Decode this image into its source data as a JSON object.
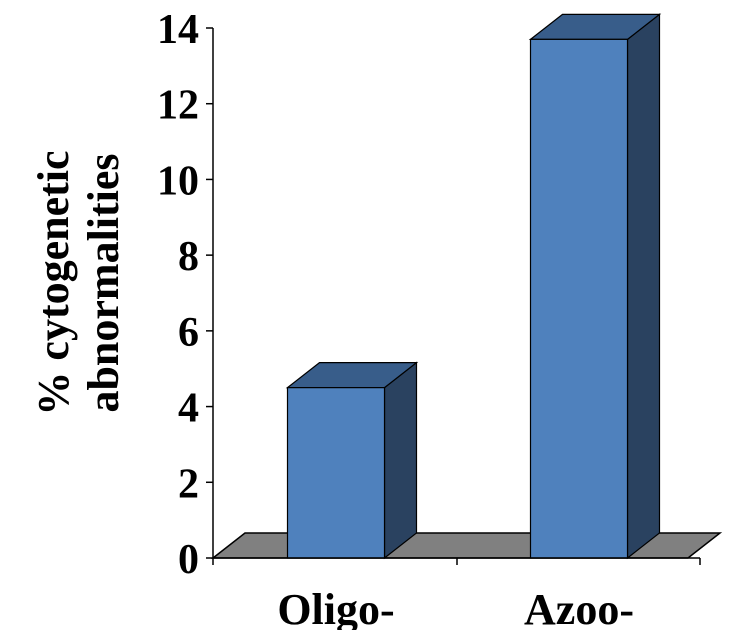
{
  "chart_data": {
    "type": "bar",
    "three_d": true,
    "categories": [
      "Oligo-",
      "Azoo-"
    ],
    "values": [
      4.5,
      13.7
    ],
    "ylabel_lines": [
      "% cytogenetic",
      "abnormalities"
    ],
    "ylim": [
      0,
      14
    ],
    "yticks": [
      "0",
      "2",
      "4",
      "6",
      "8",
      "10",
      "12",
      "14"
    ],
    "grid": false,
    "legend": "none",
    "colors": {
      "bar_front": "#4F81BD",
      "bar_top": "#385D8A",
      "bar_side": "#2A4260",
      "floor": "#808080",
      "axis": "#000000"
    }
  }
}
